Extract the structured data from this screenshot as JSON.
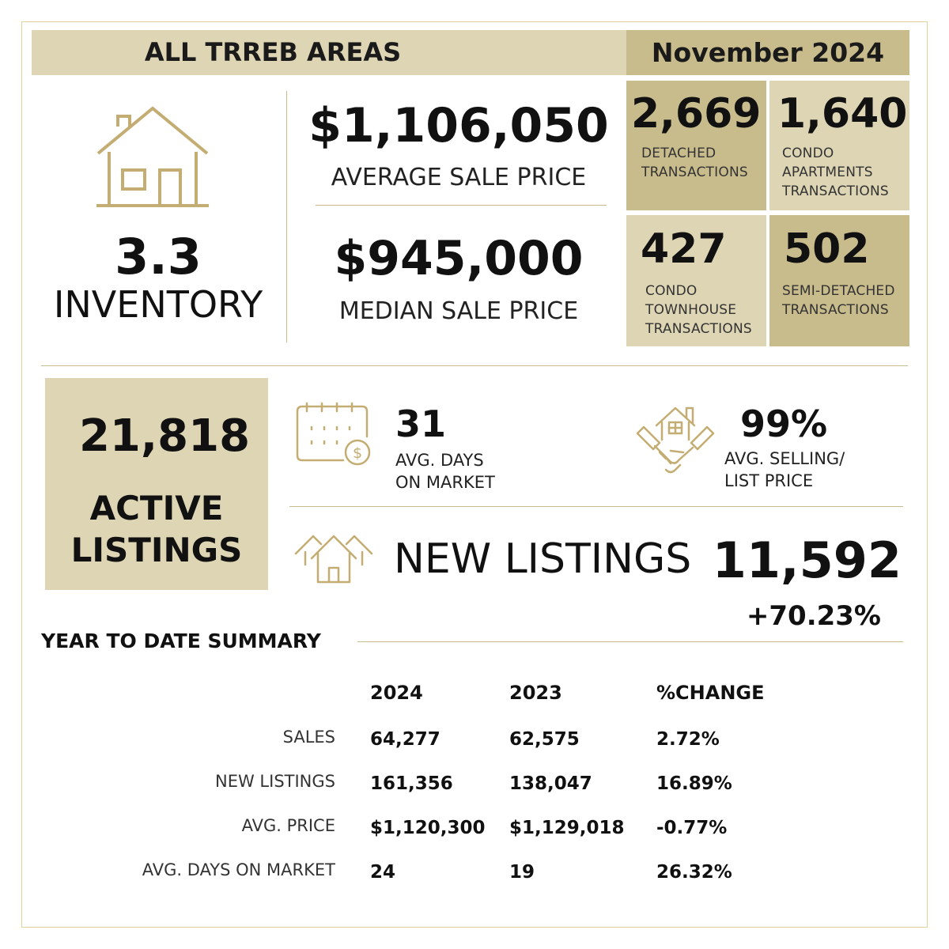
{
  "header": {
    "area": "ALL TRREB AREAS",
    "month": "November 2024"
  },
  "inventory": {
    "value": "3.3",
    "label": "INVENTORY"
  },
  "avg_price": {
    "value": "$1,106,050",
    "label": "AVERAGE SALE PRICE"
  },
  "median_price": {
    "value": "$945,000",
    "label": "MEDIAN SALE PRICE"
  },
  "tiles": [
    {
      "value": "2,669",
      "lines": [
        "DETACHED",
        "TRANSACTIONS"
      ]
    },
    {
      "value": "1,640",
      "lines": [
        "CONDO",
        "APARTMENTS",
        "TRANSACTIONS"
      ]
    },
    {
      "value": "427",
      "lines": [
        "CONDO",
        "TOWNHOUSE",
        "TRANSACTIONS"
      ]
    },
    {
      "value": "502",
      "lines": [
        "SEMI-DETACHED",
        "TRANSACTIONS"
      ]
    }
  ],
  "active_listings": {
    "value": "21,818",
    "line1": "ACTIVE",
    "line2": "LISTINGS"
  },
  "days_on_market": {
    "value": "31",
    "line1": "AVG. DAYS",
    "line2": "ON MARKET"
  },
  "selling_ratio": {
    "value": "99%",
    "line1": "AVG. SELLING/",
    "line2": "LIST PRICE"
  },
  "new_listings": {
    "label": "NEW LISTINGS",
    "value": "11,592",
    "change": "+70.23%"
  },
  "ytd": {
    "title": "YEAR TO DATE SUMMARY",
    "columns": [
      "2024",
      "2023",
      "%CHANGE"
    ],
    "rows": [
      {
        "label": "SALES",
        "values": [
          "64,277",
          "62,575",
          "2.72%"
        ]
      },
      {
        "label": "NEW LISTINGS",
        "values": [
          "161,356",
          "138,047",
          "16.89%"
        ]
      },
      {
        "label": "AVG. PRICE",
        "values": [
          "$1,120,300",
          "$1,129,018",
          "-0.77%"
        ]
      },
      {
        "label": "AVG. DAYS ON MARKET",
        "values": [
          "24",
          "19",
          "26.32%"
        ]
      }
    ]
  },
  "colors": {
    "gold": "#c4ad72",
    "tan_light": "#ddd5b3",
    "tan_dark": "#c9bc8c"
  }
}
